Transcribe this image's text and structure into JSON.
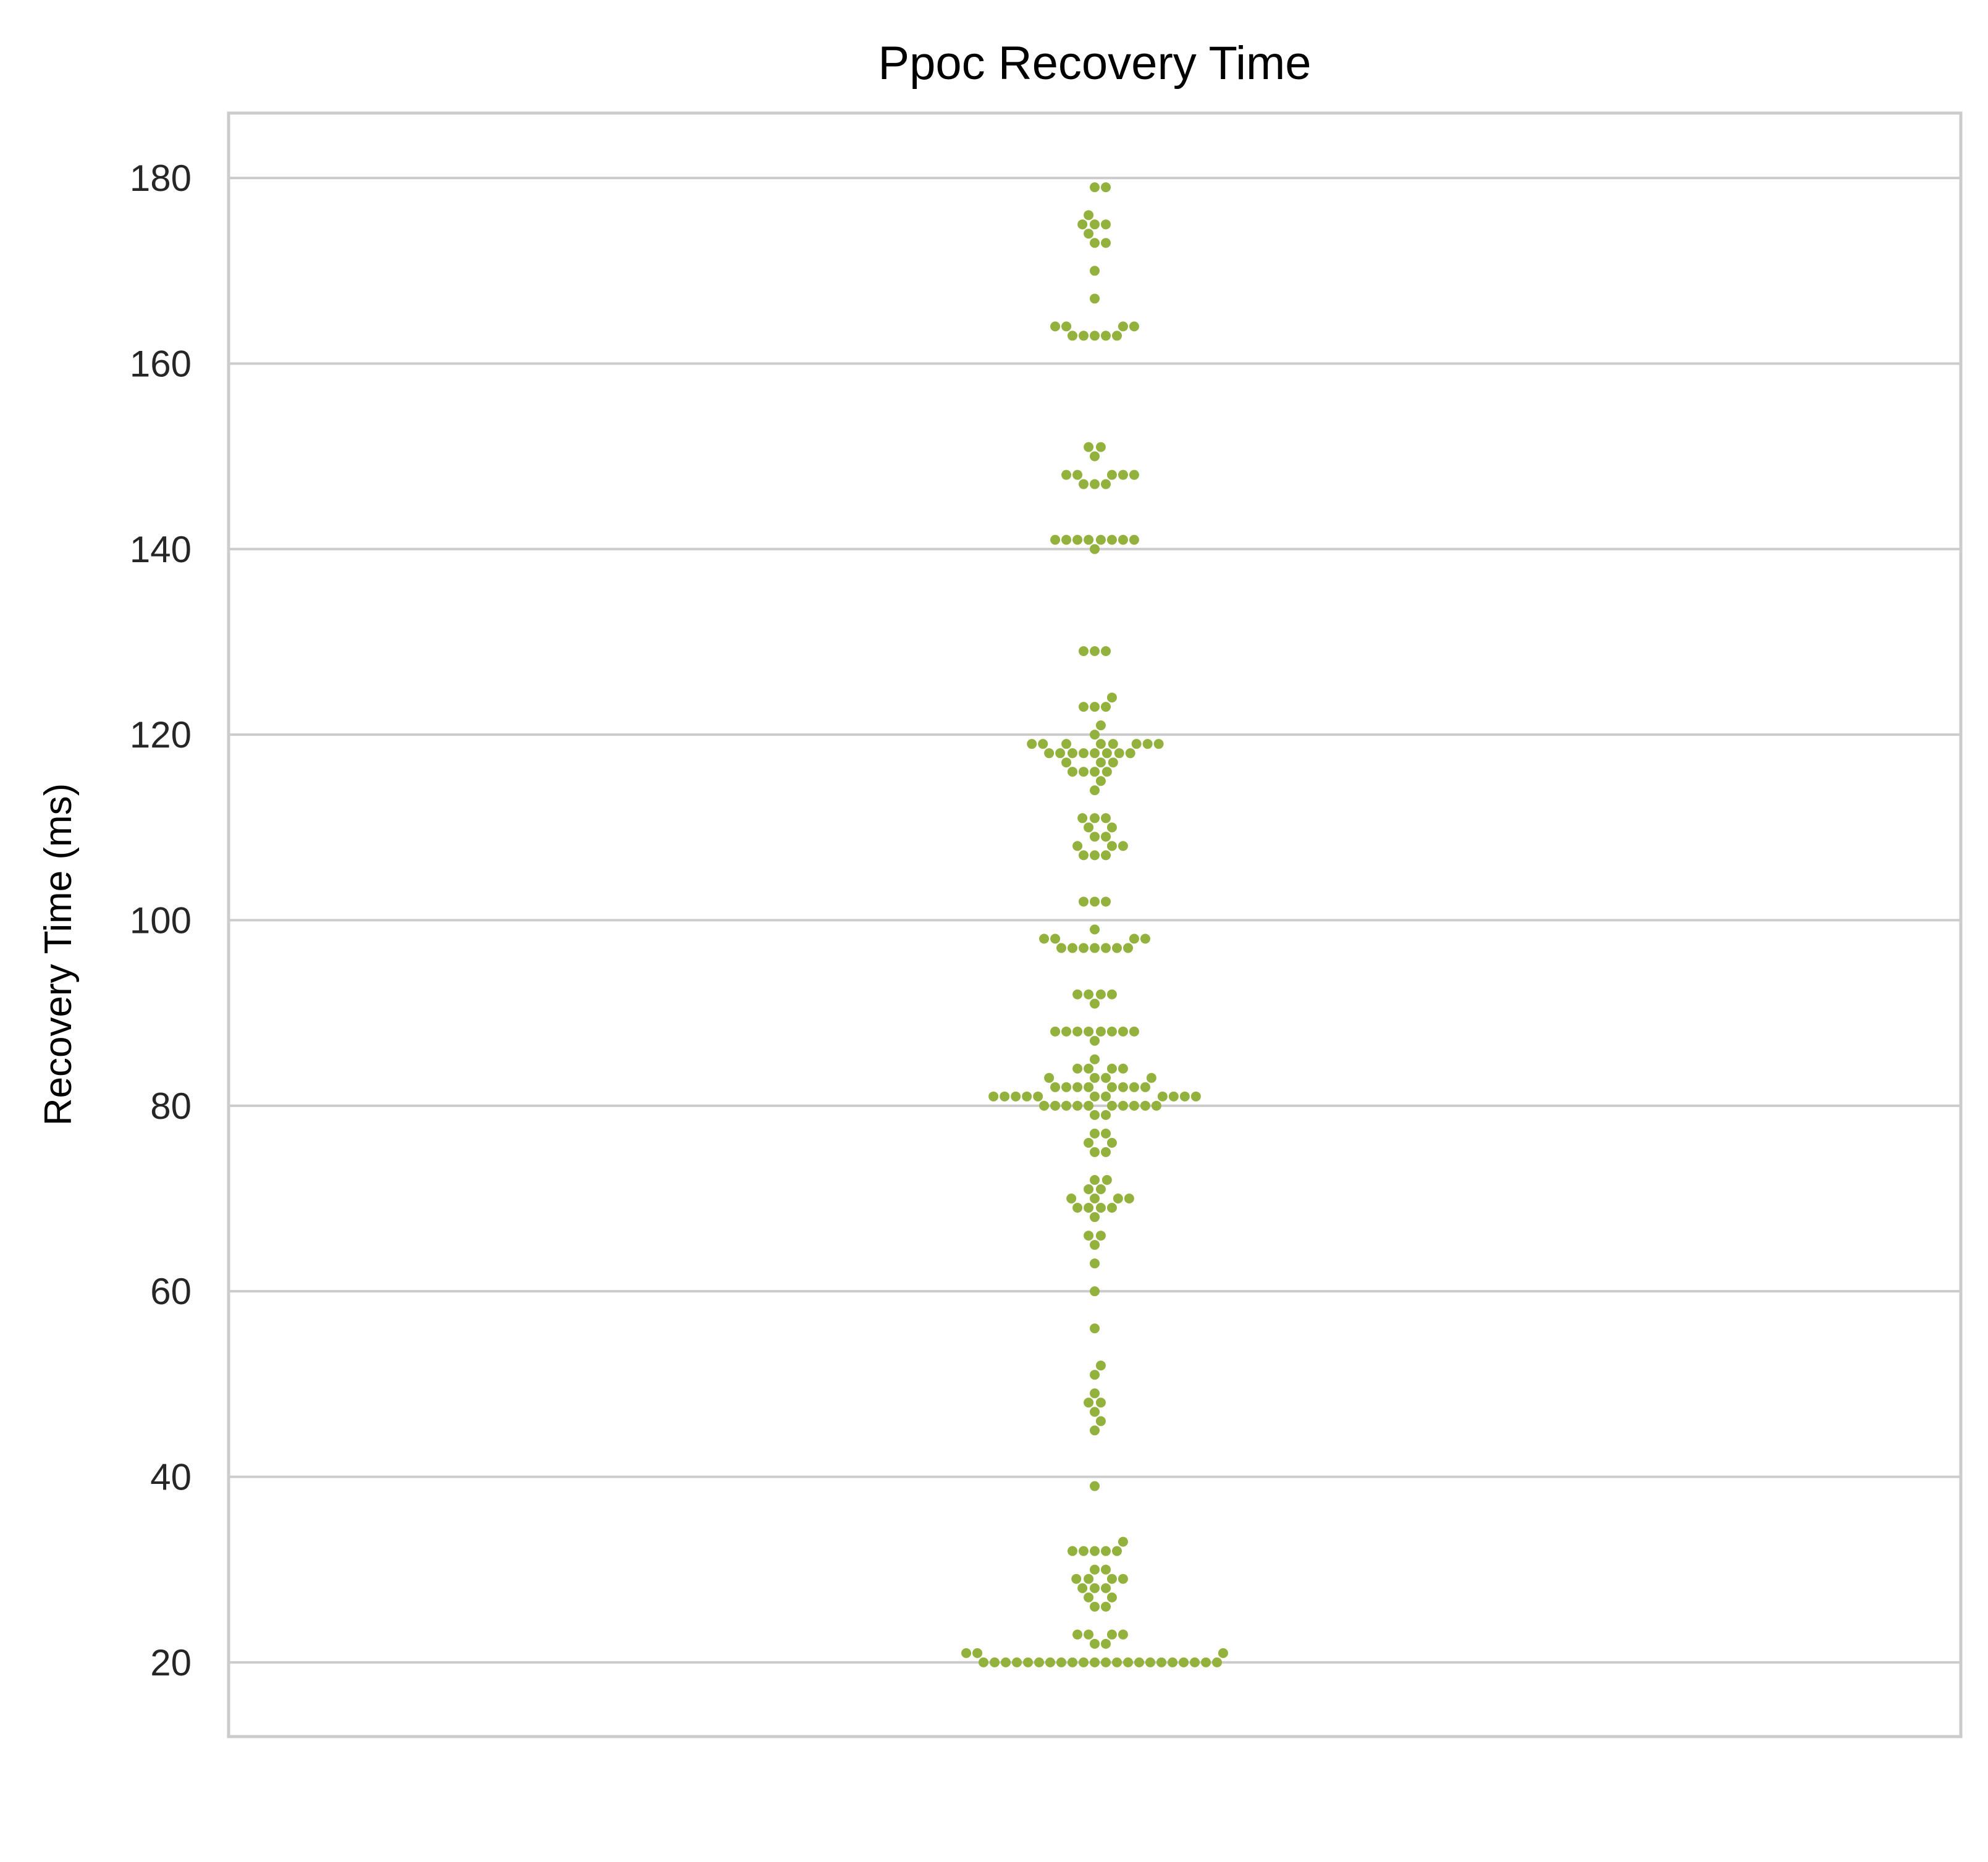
{
  "chart_data": {
    "type": "scatter",
    "style": "swarm",
    "title": "Ppoc Recovery Time",
    "xlabel": "",
    "ylabel": "Recovery Time (ms)",
    "ylim": [
      12,
      187
    ],
    "yticks": [
      20,
      40,
      60,
      80,
      100,
      120,
      140,
      160,
      180
    ],
    "grid": true,
    "color": "#93b13d",
    "series": [
      {
        "values": [
          179,
          179,
          176,
          175,
          175,
          175,
          174,
          173,
          173,
          170,
          167,
          164,
          164,
          164,
          164,
          163,
          163,
          163,
          163,
          163,
          151,
          151,
          150,
          148,
          148,
          148,
          148,
          148,
          147,
          147,
          147,
          141,
          141,
          141,
          141,
          141,
          141,
          141,
          141,
          140,
          129,
          129,
          129,
          124,
          123,
          123,
          123,
          121,
          120,
          119,
          119,
          119,
          119,
          119,
          119,
          119,
          119,
          118,
          118,
          118,
          118,
          118,
          118,
          118,
          118,
          117,
          117,
          117,
          116,
          116,
          116,
          116,
          115,
          114,
          111,
          111,
          111,
          110,
          110,
          109,
          109,
          108,
          108,
          108,
          107,
          107,
          107,
          102,
          102,
          102,
          99,
          98,
          98,
          98,
          98,
          97,
          97,
          97,
          97,
          97,
          97,
          97,
          92,
          92,
          92,
          92,
          91,
          88,
          88,
          88,
          88,
          88,
          88,
          88,
          88,
          87,
          85,
          84,
          84,
          84,
          84,
          83,
          83,
          83,
          83,
          82,
          82,
          82,
          82,
          82,
          82,
          82,
          82,
          81,
          81,
          81,
          81,
          81,
          81,
          81,
          81,
          81,
          81,
          81,
          80,
          80,
          80,
          80,
          80,
          80,
          80,
          80,
          80,
          80,
          79,
          79,
          77,
          77,
          76,
          76,
          75,
          75,
          72,
          72,
          71,
          71,
          70,
          70,
          70,
          70,
          69,
          69,
          69,
          69,
          68,
          66,
          66,
          65,
          63,
          60,
          56,
          52,
          51,
          49,
          48,
          48,
          47,
          46,
          45,
          39,
          33,
          32,
          32,
          32,
          32,
          32,
          30,
          30,
          29,
          29,
          29,
          29,
          28,
          28,
          28,
          27,
          27,
          26,
          26,
          23,
          23,
          23,
          23,
          22,
          22,
          21,
          21,
          21,
          20,
          20,
          20,
          20,
          20,
          20,
          20,
          20,
          20,
          20,
          20,
          20,
          20,
          20,
          20,
          20,
          20,
          20,
          20,
          20,
          20,
          20
        ]
      }
    ]
  }
}
